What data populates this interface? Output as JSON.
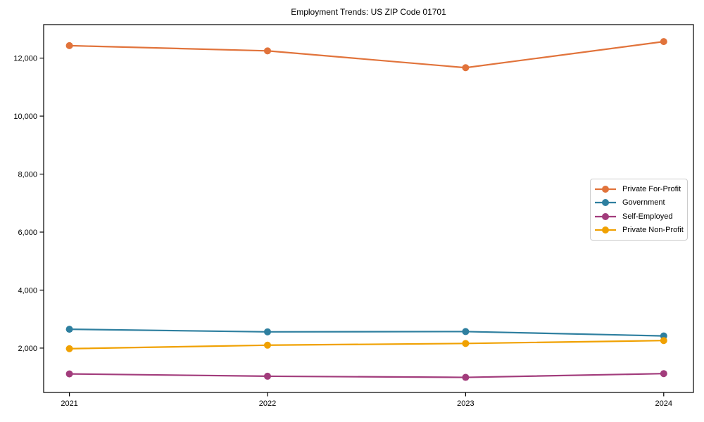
{
  "chart_data": {
    "type": "line",
    "title": "Employment Trends: US ZIP Code 01701",
    "x_categories": [
      "2021",
      "2022",
      "2023",
      "2024"
    ],
    "x_values": [
      2021,
      2022,
      2023,
      2024
    ],
    "series": [
      {
        "name": "Private For-Profit",
        "color": "#E1733B",
        "values": [
          12430,
          12250,
          11670,
          12570
        ]
      },
      {
        "name": "Government",
        "color": "#2E7F9F",
        "values": [
          2650,
          2560,
          2570,
          2420
        ]
      },
      {
        "name": "Self-Employed",
        "color": "#A23C7C",
        "values": [
          1110,
          1030,
          990,
          1120
        ]
      },
      {
        "name": "Private Non-Profit",
        "color": "#F0A102",
        "values": [
          1980,
          2100,
          2160,
          2260
        ]
      }
    ],
    "y_ticks": [
      2000,
      4000,
      6000,
      8000,
      10000,
      12000
    ],
    "y_tick_labels": [
      "2,000",
      "4,000",
      "6,000",
      "8,000",
      "10,000",
      "12,000"
    ],
    "ylim": [
      470,
      13155
    ],
    "xlim": [
      2020.87,
      2024.15
    ],
    "xlabel": "",
    "ylabel": "",
    "grid": false,
    "legend_position": "center right",
    "axis_color": "#000000",
    "background_color": "#ffffff",
    "marker": "circle",
    "marker_radius": 5,
    "line_width": 2.2
  }
}
